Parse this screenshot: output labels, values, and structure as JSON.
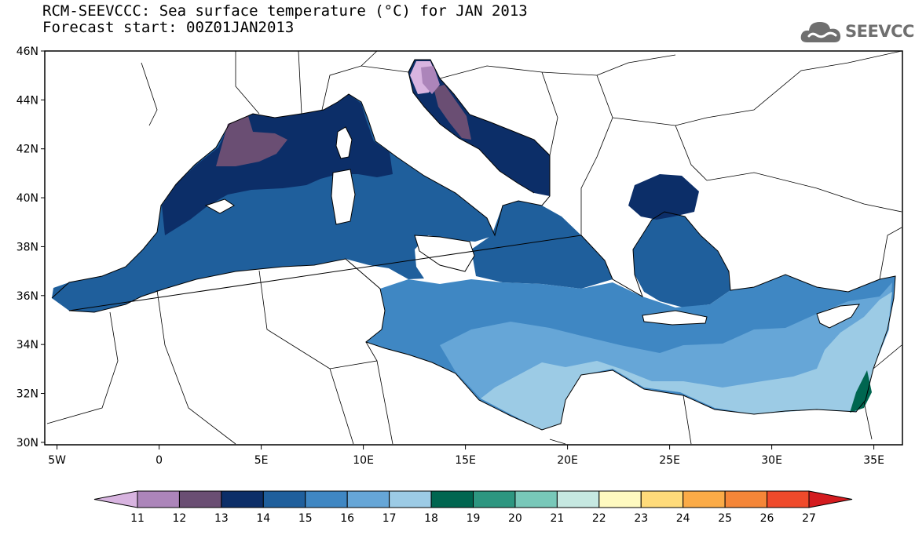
{
  "header": {
    "title": "RCM-SEEVCCC: Sea surface temperature (°C) for JAN 2013",
    "subtitle": "Forecast start: 00Z01JAN2013"
  },
  "logo": {
    "text": "SEEVCCC",
    "icon": "cloud-icon"
  },
  "map": {
    "lat_ticks": [
      {
        "value": 46,
        "label": "46N"
      },
      {
        "value": 44,
        "label": "44N"
      },
      {
        "value": 42,
        "label": "42N"
      },
      {
        "value": 40,
        "label": "40N"
      },
      {
        "value": 38,
        "label": "38N"
      },
      {
        "value": 36,
        "label": "36N"
      },
      {
        "value": 34,
        "label": "34N"
      },
      {
        "value": 32,
        "label": "32N"
      },
      {
        "value": 30,
        "label": "30N"
      }
    ],
    "lon_ticks": [
      {
        "value": -5,
        "label": "5W"
      },
      {
        "value": 0,
        "label": "0"
      },
      {
        "value": 5,
        "label": "5E"
      },
      {
        "value": 10,
        "label": "10E"
      },
      {
        "value": 15,
        "label": "15E"
      },
      {
        "value": 20,
        "label": "20E"
      },
      {
        "value": 25,
        "label": "25E"
      },
      {
        "value": 30,
        "label": "30E"
      },
      {
        "value": 35,
        "label": "35E"
      }
    ],
    "lon_range": [
      -5.6,
      36.4
    ],
    "lat_range": [
      29.9,
      46.0
    ]
  },
  "legend": {
    "labels": [
      "11",
      "12",
      "13",
      "14",
      "15",
      "16",
      "17",
      "18",
      "19",
      "20",
      "21",
      "22",
      "23",
      "24",
      "25",
      "26",
      "27"
    ],
    "colors": [
      "#d8b4e0",
      "#ac85ba",
      "#6a4e73",
      "#0c2e68",
      "#1f5f9c",
      "#3f87c3",
      "#66a6d7",
      "#9ccbe5",
      "#006650",
      "#2d9680",
      "#78c8b9",
      "#c6e8e1",
      "#fffac0",
      "#ffdb7a",
      "#fbab47",
      "#f58638",
      "#ef4a2b",
      "#d41b1f"
    ]
  }
}
